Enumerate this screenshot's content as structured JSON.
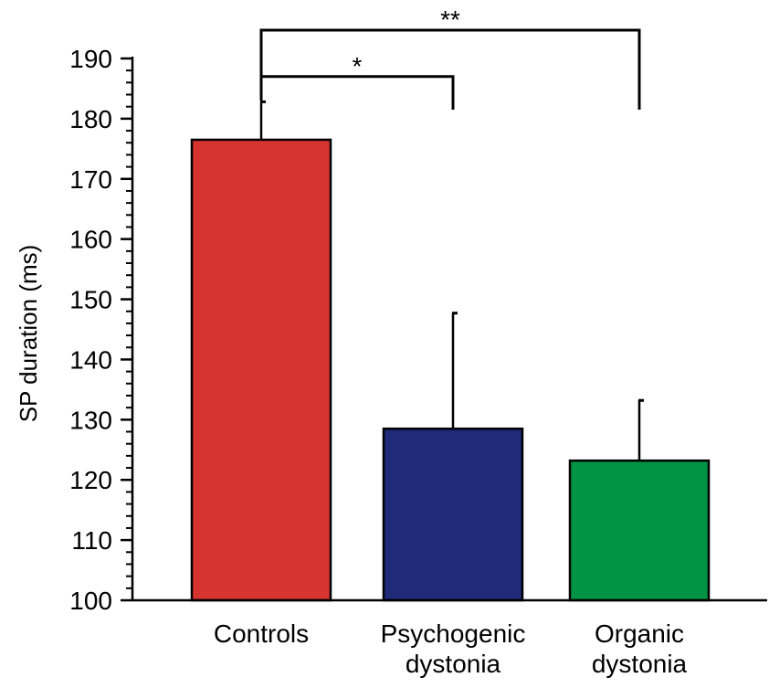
{
  "chart_data": {
    "type": "bar",
    "title": "",
    "xlabel": "",
    "ylabel": "SP duration (ms)",
    "ylim": [
      100,
      190
    ],
    "y_major_ticks": [
      100,
      110,
      120,
      130,
      140,
      150,
      160,
      170,
      180,
      190
    ],
    "y_minor_step": 2,
    "grid": false,
    "legend": "none",
    "categories": [
      [
        "Controls"
      ],
      [
        "Psychogenic",
        "dystonia"
      ],
      [
        "Organic",
        "dystonia"
      ]
    ],
    "values": [
      176.5,
      128.5,
      123.2
    ],
    "error_upper": [
      6.3,
      19.2,
      10.0
    ],
    "colors": [
      "#d73431",
      "#1f2a78",
      "#009444"
    ],
    "significance": [
      {
        "from": 0,
        "to": 1,
        "label": "*"
      },
      {
        "from": 0,
        "to": 2,
        "label": "**"
      }
    ]
  }
}
